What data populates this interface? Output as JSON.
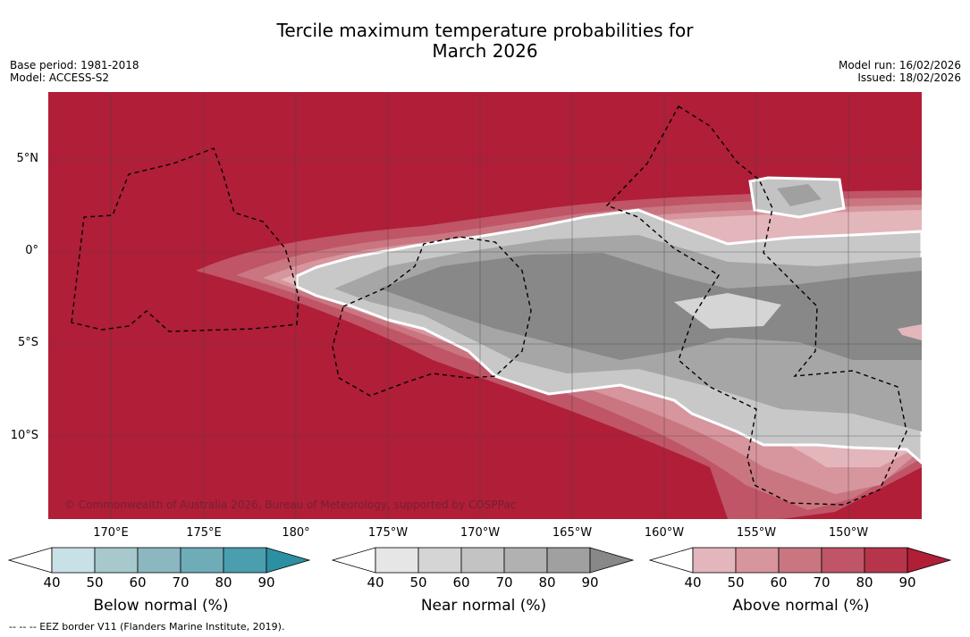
{
  "header": {
    "title_line1": "Tercile maximum temperature probabilities for",
    "title_line2": "March 2026",
    "base_period": "Base period: 1981-2018",
    "model": "Model: ACCESS-S2",
    "model_run": "Model run: 16/02/2026",
    "issued": "Issued: 18/02/2026"
  },
  "map": {
    "lat_labels": [
      "5°N",
      "0°",
      "5°S",
      "10°S"
    ],
    "lon_labels": [
      "170°E",
      "175°E",
      "180°",
      "175°W",
      "170°W",
      "165°W",
      "160°W",
      "155°W",
      "150°W"
    ],
    "copyright": "© Commonwealth of Australia 2026, Bureau of Meteorology, supported by COSPPac"
  },
  "legends": {
    "below": {
      "title": "Below normal (%)",
      "ticks": [
        "40",
        "50",
        "60",
        "70",
        "80",
        "90"
      ],
      "colors": [
        "#c8e1e7",
        "#a7c8cd",
        "#8ab7c0",
        "#6eacb8",
        "#4a9eae",
        "#2c8fa2"
      ]
    },
    "near": {
      "title": "Near normal (%)",
      "ticks": [
        "40",
        "50",
        "60",
        "70",
        "80",
        "90"
      ],
      "colors": [
        "#e6e6e6",
        "#d5d5d5",
        "#c3c3c3",
        "#b1b1b1",
        "#a0a0a0",
        "#888888"
      ]
    },
    "above": {
      "title": "Above normal (%)",
      "ticks": [
        "40",
        "50",
        "60",
        "70",
        "80",
        "90"
      ],
      "colors": [
        "#e3b6bc",
        "#d7959d",
        "#c97681",
        "#bf5566",
        "#b7354b",
        "#b01e38"
      ]
    }
  },
  "footer": {
    "eez_note": "--  --  -- EEZ border V11 (Flanders Marine Institute, 2019)."
  },
  "colors": {
    "above_max": "#b01e38"
  }
}
